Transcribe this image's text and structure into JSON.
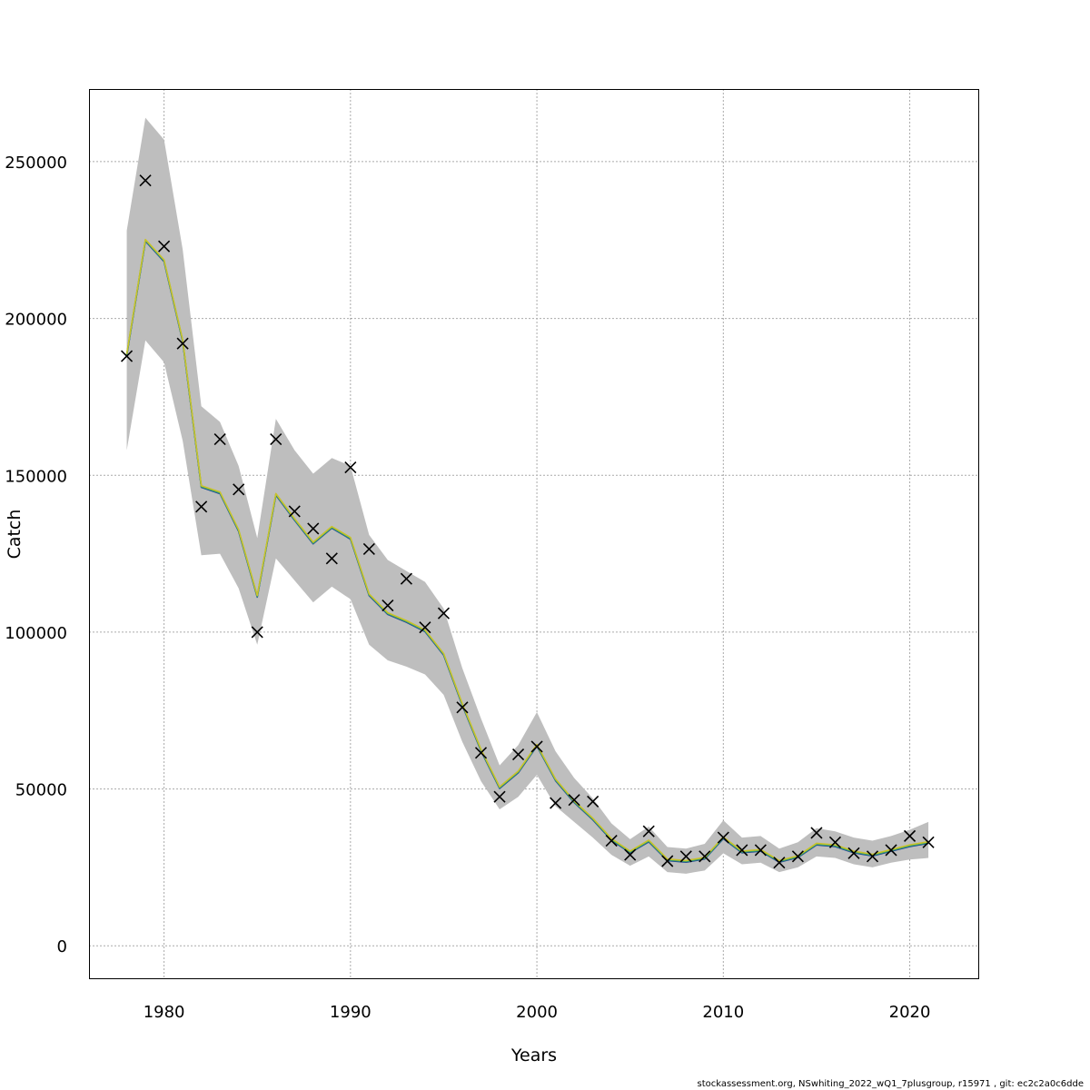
{
  "chart_data": {
    "type": "line",
    "title": "",
    "xlabel": "Years",
    "ylabel": "Catch",
    "xlim": [
      1976,
      2023.7
    ],
    "ylim": [
      -10500,
      273000
    ],
    "x_ticks": [
      1980,
      1990,
      2000,
      2010,
      2020
    ],
    "y_ticks": [
      0,
      50000,
      100000,
      150000,
      200000,
      250000
    ],
    "grid": true,
    "footer": "stockassessment.org, NSwhiting_2022_wQ1_7plusgroup, r15971 , git: ec2c2a0c6dde",
    "colors": {
      "band": "#bebebe",
      "observed_marker": "#000000",
      "grid": "#555555",
      "retro_lines": [
        "#1f3a93",
        "#2a8a8a",
        "#3ba55c",
        "#c9c22b"
      ]
    },
    "x": [
      1978,
      1979,
      1980,
      1981,
      1982,
      1983,
      1984,
      1985,
      1986,
      1987,
      1988,
      1989,
      1990,
      1991,
      1992,
      1993,
      1994,
      1995,
      1996,
      1997,
      1998,
      1999,
      2000,
      2001,
      2002,
      2003,
      2004,
      2005,
      2006,
      2007,
      2008,
      2009,
      2010,
      2011,
      2012,
      2013,
      2014,
      2015,
      2016,
      2017,
      2018,
      2019,
      2020,
      2021
    ],
    "observed": [
      188000,
      244000,
      223000,
      192000,
      140000,
      161500,
      145500,
      100000,
      161500,
      138500,
      133000,
      123500,
      152500,
      126500,
      108500,
      117000,
      101500,
      106000,
      76000,
      61500,
      47500,
      61000,
      63500,
      45500,
      46500,
      46000,
      33500,
      29000,
      36500,
      27000,
      28500,
      28500,
      34500,
      30500,
      30500,
      26500,
      28500,
      36000,
      33000,
      29500,
      28500,
      30500,
      35000,
      33000
    ],
    "estimate": [
      188500,
      225000,
      218500,
      193000,
      146500,
      144500,
      132500,
      111500,
      144000,
      136000,
      128500,
      133500,
      130000,
      112000,
      106000,
      103500,
      100500,
      93000,
      77000,
      62500,
      50500,
      55500,
      64000,
      53000,
      46000,
      40500,
      34000,
      30000,
      33500,
      27500,
      27000,
      28000,
      34500,
      30000,
      30500,
      27000,
      28500,
      32500,
      32000,
      30000,
      29000,
      30500,
      32000,
      33000
    ],
    "lower": [
      158000,
      193000,
      186000,
      161000,
      124500,
      125000,
      114000,
      96000,
      123500,
      116500,
      109500,
      114500,
      110500,
      96000,
      91000,
      89000,
      86500,
      80000,
      65000,
      52500,
      43500,
      47500,
      54500,
      44500,
      39500,
      34500,
      29000,
      25500,
      28500,
      23500,
      23000,
      24000,
      29500,
      26000,
      26500,
      23500,
      25000,
      28500,
      28000,
      26000,
      25000,
      26500,
      27500,
      28000
    ],
    "upper": [
      228000,
      264000,
      257000,
      222000,
      172000,
      167000,
      153000,
      130000,
      168000,
      158000,
      150500,
      155500,
      153000,
      131000,
      123000,
      119500,
      116000,
      107500,
      88500,
      72500,
      57500,
      64000,
      74500,
      62000,
      53500,
      47000,
      39000,
      34000,
      38000,
      31500,
      31000,
      32500,
      40000,
      34500,
      35000,
      31000,
      33000,
      37500,
      36500,
      34500,
      33500,
      35000,
      37000,
      39500
    ]
  }
}
